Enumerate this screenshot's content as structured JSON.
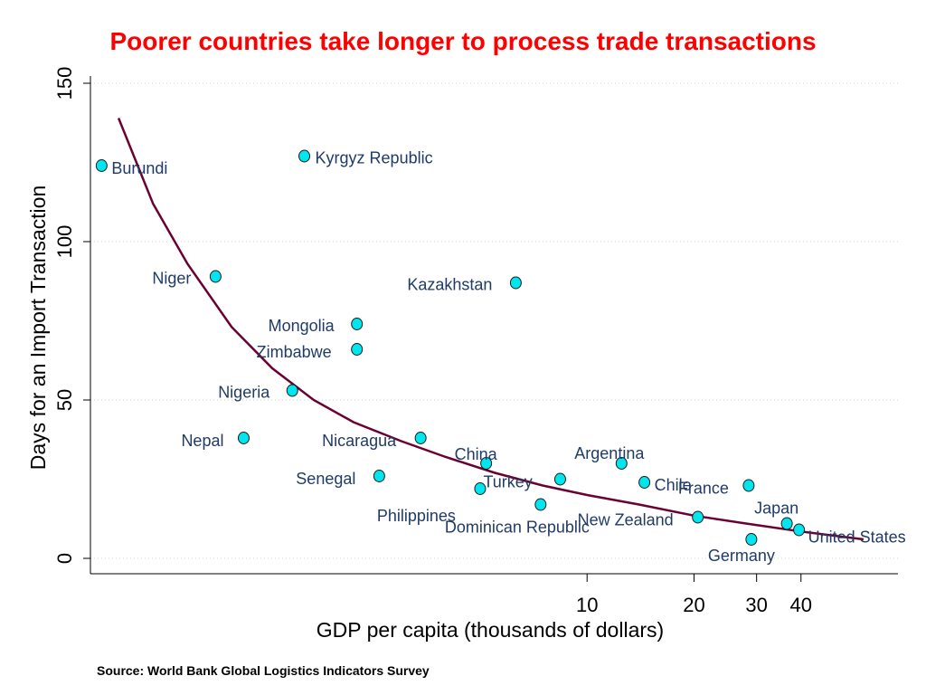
{
  "title": "Poorer countries take longer to process trade transactions",
  "source": "Source: World Bank Global Logistics Indicators Survey",
  "colors": {
    "title": "#ff0000",
    "point": "#00e5ee",
    "curve": "#6b0032",
    "label": "#1f3b66",
    "grid": "#d0d0d0"
  },
  "chart_data": {
    "type": "scatter",
    "title": "Poorer countries take longer to process trade transactions",
    "xlabel": "GDP per capita (thousands of dollars)",
    "ylabel": "Days for an Import Transaction",
    "x_scale": "log",
    "xlim": [
      0.4,
      75
    ],
    "ylim": [
      0,
      150
    ],
    "grid": true,
    "x_ticks": [
      10,
      20,
      30,
      40
    ],
    "y_ticks": [
      0,
      50,
      100,
      150
    ],
    "points": [
      {
        "label": "Burundi",
        "x": 0.43,
        "y": 124
      },
      {
        "label": "Kyrgyz Republic",
        "x": 1.6,
        "y": 127
      },
      {
        "label": "Niger",
        "x": 0.9,
        "y": 89
      },
      {
        "label": "Kazakhstan",
        "x": 6.3,
        "y": 87
      },
      {
        "label": "Mongolia",
        "x": 2.25,
        "y": 74
      },
      {
        "label": "Zimbabwe",
        "x": 2.25,
        "y": 66
      },
      {
        "label": "Nigeria",
        "x": 1.48,
        "y": 53
      },
      {
        "label": "Nepal",
        "x": 1.08,
        "y": 38
      },
      {
        "label": "Nicaragua",
        "x": 3.4,
        "y": 38
      },
      {
        "label": "China",
        "x": 5.2,
        "y": 30
      },
      {
        "label": "Argentina",
        "x": 12.5,
        "y": 30
      },
      {
        "label": "Senegal",
        "x": 2.6,
        "y": 26
      },
      {
        "label": "Turkey",
        "x": 8.4,
        "y": 25
      },
      {
        "label": "Chile",
        "x": 14.5,
        "y": 24
      },
      {
        "label": "Philippines",
        "x": 5.0,
        "y": 22
      },
      {
        "label": "Dominican Republic",
        "x": 7.4,
        "y": 17
      },
      {
        "label": "France",
        "x": 28.5,
        "y": 23
      },
      {
        "label": "New Zealand",
        "x": 20.5,
        "y": 13
      },
      {
        "label": "Japan",
        "x": 36.5,
        "y": 11
      },
      {
        "label": "United States",
        "x": 39.5,
        "y": 9
      },
      {
        "label": "Germany",
        "x": 29,
        "y": 6
      }
    ],
    "fit_curve": {
      "x": [
        0.48,
        0.6,
        0.75,
        1.0,
        1.3,
        1.7,
        2.2,
        3.0,
        4.0,
        5.5,
        7.5,
        10,
        14,
        20,
        28,
        40,
        60
      ],
      "y": [
        139,
        112,
        93,
        73,
        60,
        50,
        43,
        37,
        32,
        27,
        23,
        20,
        17,
        13.5,
        11,
        8.5,
        6
      ]
    }
  }
}
